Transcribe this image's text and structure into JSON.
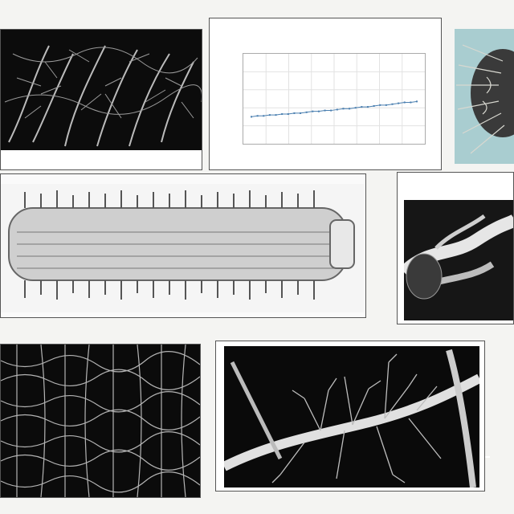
{
  "header": {
    "caption": ""
  },
  "chart": {
    "title": "",
    "subtitle": "",
    "xlabel": "",
    "ylabel": "",
    "yticks": [
      "",
      "",
      "",
      "",
      "",
      ""
    ],
    "xticks": [
      "",
      "",
      "",
      "",
      "",
      "",
      ""
    ]
  },
  "chart_data": {
    "type": "line",
    "x": [
      0,
      1,
      2,
      3,
      4,
      5,
      6,
      7,
      8,
      9,
      10,
      11,
      12,
      13,
      14,
      15,
      16,
      17,
      18,
      19,
      20,
      21,
      22,
      23,
      24,
      25,
      26,
      27
    ],
    "values": [
      0.3,
      0.31,
      0.31,
      0.32,
      0.32,
      0.33,
      0.33,
      0.34,
      0.34,
      0.35,
      0.36,
      0.36,
      0.37,
      0.37,
      0.38,
      0.39,
      0.39,
      0.4,
      0.41,
      0.41,
      0.42,
      0.43,
      0.43,
      0.44,
      0.45,
      0.46,
      0.46,
      0.47
    ],
    "ylim": [
      0,
      1
    ],
    "color": "#4a7fb0",
    "grid": true
  },
  "panels": {
    "mid_right_title": "",
    "mid_right_stamp": "",
    "footer_left": "",
    "footer_mid": "",
    "footer_right": ""
  }
}
